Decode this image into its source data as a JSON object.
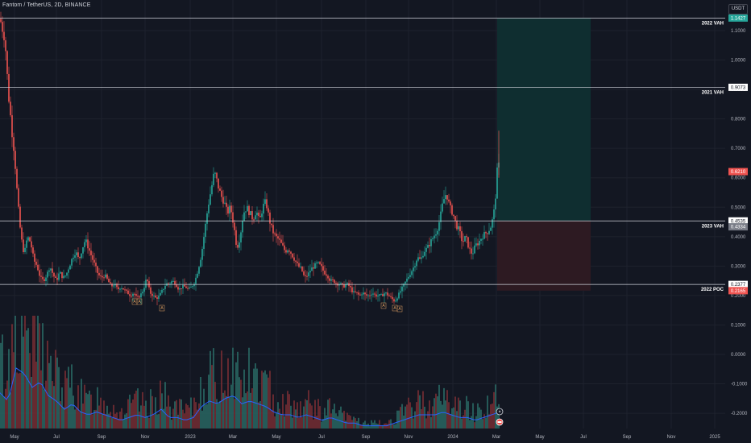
{
  "header": {
    "title": "Fantom / TetherUS, 2D, BINANCE",
    "currency": "USDT"
  },
  "colors": {
    "background": "#131722",
    "up": "#26a69a",
    "down": "#ef5350",
    "grid": "#1e222d",
    "level_line": "#d1d4dc",
    "volume_ma": "#2962ff",
    "target_zone": "#0f2e30",
    "stop_zone": "#2d1a22",
    "price_tag": "#ef5350",
    "level_tag": "#ffffff",
    "high_tag": "#26a69a",
    "low_tag": "#787b86"
  },
  "levels": [
    {
      "name": "2022 VAH",
      "price": 1.1427,
      "tag": "1.1427",
      "tag_color": "high"
    },
    {
      "name": "2021 VAH",
      "price": 0.9073,
      "tag": "0.9073",
      "tag_color": "level"
    },
    {
      "name": "2023 VAH",
      "price": 0.4535,
      "tag": "0.4535",
      "tag_color": "level"
    },
    {
      "name": "2022 POC",
      "price": 0.2377,
      "tag": "0.2377",
      "tag_color": "level"
    }
  ],
  "price_tags": [
    {
      "price": 0.621,
      "tag": "0.6210",
      "color": "down"
    },
    {
      "price": 0.4334,
      "tag": "0.4334",
      "color": "low"
    },
    {
      "price": 0.2165,
      "tag": "0.2165",
      "color": "down"
    }
  ],
  "chart_data": {
    "type": "candlestick",
    "y_axis_ticks": [
      "1.1000",
      "1.0000",
      "0.9000",
      "0.8000",
      "0.7000",
      "0.6000",
      "0.5000",
      "0.4000",
      "0.3000",
      "0.2000",
      "0.1000",
      "0.0000",
      "-0.1000",
      "-0.2000"
    ],
    "y_axis_values": [
      1.1,
      1.0,
      0.9,
      0.8,
      0.7,
      0.6,
      0.5,
      0.4,
      0.3,
      0.2,
      0.1,
      0.0,
      -0.1,
      -0.2
    ],
    "x_axis_ticks": [
      "May",
      "Jul",
      "Sep",
      "Nov",
      "2023",
      "Mar",
      "May",
      "Jul",
      "Sep",
      "Nov",
      "2024",
      "Mar",
      "May",
      "Jul",
      "Sep",
      "Nov",
      "2025"
    ],
    "ylim": [
      -0.2,
      1.1427
    ],
    "price_path": [
      [
        0,
        1.14
      ],
      [
        6,
        1.08
      ],
      [
        10,
        0.9
      ],
      [
        14,
        0.78
      ],
      [
        18,
        0.68
      ],
      [
        22,
        0.52
      ],
      [
        26,
        0.4
      ],
      [
        30,
        0.34
      ],
      [
        34,
        0.4
      ],
      [
        38,
        0.38
      ],
      [
        42,
        0.32
      ],
      [
        46,
        0.3
      ],
      [
        50,
        0.26
      ],
      [
        54,
        0.25
      ],
      [
        58,
        0.27
      ],
      [
        62,
        0.3
      ],
      [
        66,
        0.27
      ],
      [
        70,
        0.25
      ],
      [
        74,
        0.28
      ],
      [
        78,
        0.26
      ],
      [
        82,
        0.27
      ],
      [
        86,
        0.3
      ],
      [
        90,
        0.33
      ],
      [
        94,
        0.35
      ],
      [
        98,
        0.32
      ],
      [
        102,
        0.36
      ],
      [
        106,
        0.39
      ],
      [
        110,
        0.36
      ],
      [
        114,
        0.33
      ],
      [
        118,
        0.3
      ],
      [
        122,
        0.27
      ],
      [
        126,
        0.26
      ],
      [
        130,
        0.27
      ],
      [
        134,
        0.25
      ],
      [
        138,
        0.23
      ],
      [
        142,
        0.24
      ],
      [
        146,
        0.22
      ],
      [
        150,
        0.23
      ],
      [
        154,
        0.22
      ],
      [
        158,
        0.21
      ],
      [
        162,
        0.2
      ],
      [
        166,
        0.21
      ],
      [
        170,
        0.19
      ],
      [
        174,
        0.2
      ],
      [
        178,
        0.22
      ],
      [
        182,
        0.26
      ],
      [
        186,
        0.21
      ],
      [
        190,
        0.2
      ],
      [
        194,
        0.19
      ],
      [
        198,
        0.2
      ],
      [
        202,
        0.22
      ],
      [
        206,
        0.24
      ],
      [
        210,
        0.24
      ],
      [
        214,
        0.25
      ],
      [
        218,
        0.24
      ],
      [
        222,
        0.22
      ],
      [
        226,
        0.23
      ],
      [
        230,
        0.23
      ],
      [
        234,
        0.22
      ],
      [
        238,
        0.23
      ],
      [
        242,
        0.25
      ],
      [
        246,
        0.29
      ],
      [
        250,
        0.34
      ],
      [
        254,
        0.42
      ],
      [
        258,
        0.5
      ],
      [
        262,
        0.56
      ],
      [
        266,
        0.62
      ],
      [
        270,
        0.58
      ],
      [
        274,
        0.54
      ],
      [
        278,
        0.52
      ],
      [
        282,
        0.48
      ],
      [
        286,
        0.5
      ],
      [
        290,
        0.44
      ],
      [
        294,
        0.36
      ],
      [
        298,
        0.4
      ],
      [
        302,
        0.48
      ],
      [
        306,
        0.5
      ],
      [
        310,
        0.48
      ],
      [
        314,
        0.46
      ],
      [
        318,
        0.49
      ],
      [
        322,
        0.45
      ],
      [
        326,
        0.5
      ],
      [
        330,
        0.52
      ],
      [
        334,
        0.46
      ],
      [
        338,
        0.42
      ],
      [
        342,
        0.4
      ],
      [
        346,
        0.39
      ],
      [
        350,
        0.37
      ],
      [
        354,
        0.35
      ],
      [
        358,
        0.36
      ],
      [
        362,
        0.34
      ],
      [
        366,
        0.32
      ],
      [
        370,
        0.3
      ],
      [
        374,
        0.29
      ],
      [
        378,
        0.26
      ],
      [
        382,
        0.27
      ],
      [
        386,
        0.29
      ],
      [
        390,
        0.3
      ],
      [
        394,
        0.31
      ],
      [
        398,
        0.3
      ],
      [
        402,
        0.28
      ],
      [
        406,
        0.27
      ],
      [
        410,
        0.25
      ],
      [
        414,
        0.25
      ],
      [
        418,
        0.24
      ],
      [
        422,
        0.24
      ],
      [
        426,
        0.23
      ],
      [
        430,
        0.24
      ],
      [
        434,
        0.23
      ],
      [
        438,
        0.21
      ],
      [
        442,
        0.21
      ],
      [
        446,
        0.2
      ],
      [
        450,
        0.21
      ],
      [
        454,
        0.2
      ],
      [
        458,
        0.2
      ],
      [
        462,
        0.21
      ],
      [
        466,
        0.2
      ],
      [
        470,
        0.2
      ],
      [
        474,
        0.2
      ],
      [
        478,
        0.21
      ],
      [
        482,
        0.2
      ],
      [
        486,
        0.19
      ],
      [
        490,
        0.18
      ],
      [
        494,
        0.2
      ],
      [
        498,
        0.22
      ],
      [
        502,
        0.24
      ],
      [
        506,
        0.26
      ],
      [
        510,
        0.28
      ],
      [
        514,
        0.3
      ],
      [
        518,
        0.33
      ],
      [
        522,
        0.32
      ],
      [
        526,
        0.35
      ],
      [
        530,
        0.36
      ],
      [
        534,
        0.38
      ],
      [
        538,
        0.4
      ],
      [
        542,
        0.42
      ],
      [
        546,
        0.46
      ],
      [
        550,
        0.52
      ],
      [
        554,
        0.55
      ],
      [
        558,
        0.5
      ],
      [
        562,
        0.48
      ],
      [
        566,
        0.44
      ],
      [
        570,
        0.42
      ],
      [
        574,
        0.38
      ],
      [
        578,
        0.4
      ],
      [
        582,
        0.36
      ],
      [
        586,
        0.34
      ],
      [
        590,
        0.37
      ],
      [
        594,
        0.38
      ],
      [
        598,
        0.4
      ],
      [
        602,
        0.41
      ],
      [
        606,
        0.42
      ],
      [
        610,
        0.44
      ],
      [
        614,
        0.5
      ],
      [
        616,
        0.58
      ],
      [
        618,
        0.66
      ],
      [
        620,
        0.621
      ]
    ],
    "volume_path": [
      [
        0,
        0.13
      ],
      [
        10,
        0.1
      ],
      [
        20,
        0.22
      ],
      [
        30,
        0.2
      ],
      [
        40,
        0.15
      ],
      [
        50,
        0.17
      ],
      [
        60,
        0.12
      ],
      [
        70,
        0.1
      ],
      [
        80,
        0.07
      ],
      [
        90,
        0.09
      ],
      [
        100,
        0.06
      ],
      [
        110,
        0.05
      ],
      [
        120,
        0.06
      ],
      [
        130,
        0.05
      ],
      [
        140,
        0.04
      ],
      [
        150,
        0.03
      ],
      [
        160,
        0.04
      ],
      [
        170,
        0.05
      ],
      [
        180,
        0.04
      ],
      [
        190,
        0.05
      ],
      [
        200,
        0.07
      ],
      [
        210,
        0.04
      ],
      [
        220,
        0.04
      ],
      [
        230,
        0.03
      ],
      [
        240,
        0.04
      ],
      [
        250,
        0.08
      ],
      [
        260,
        0.1
      ],
      [
        270,
        0.09
      ],
      [
        280,
        0.11
      ],
      [
        290,
        0.12
      ],
      [
        300,
        0.09
      ],
      [
        310,
        0.1
      ],
      [
        320,
        0.09
      ],
      [
        330,
        0.08
      ],
      [
        340,
        0.06
      ],
      [
        350,
        0.05
      ],
      [
        360,
        0.05
      ],
      [
        370,
        0.04
      ],
      [
        380,
        0.05
      ],
      [
        390,
        0.04
      ],
      [
        400,
        0.03
      ],
      [
        410,
        0.04
      ],
      [
        420,
        0.03
      ],
      [
        430,
        0.02
      ],
      [
        440,
        0.02
      ],
      [
        450,
        0.01
      ],
      [
        460,
        0.01
      ],
      [
        470,
        0.01
      ],
      [
        480,
        0.01
      ],
      [
        490,
        0.02
      ],
      [
        500,
        0.03
      ],
      [
        510,
        0.04
      ],
      [
        520,
        0.05
      ],
      [
        530,
        0.05
      ],
      [
        540,
        0.05
      ],
      [
        550,
        0.06
      ],
      [
        560,
        0.05
      ],
      [
        570,
        0.04
      ],
      [
        580,
        0.04
      ],
      [
        590,
        0.03
      ],
      [
        600,
        0.04
      ],
      [
        610,
        0.05
      ],
      [
        620,
        0.06
      ]
    ],
    "lows_marked": [
      "A",
      "A",
      "A",
      "A",
      "A",
      "A"
    ]
  }
}
